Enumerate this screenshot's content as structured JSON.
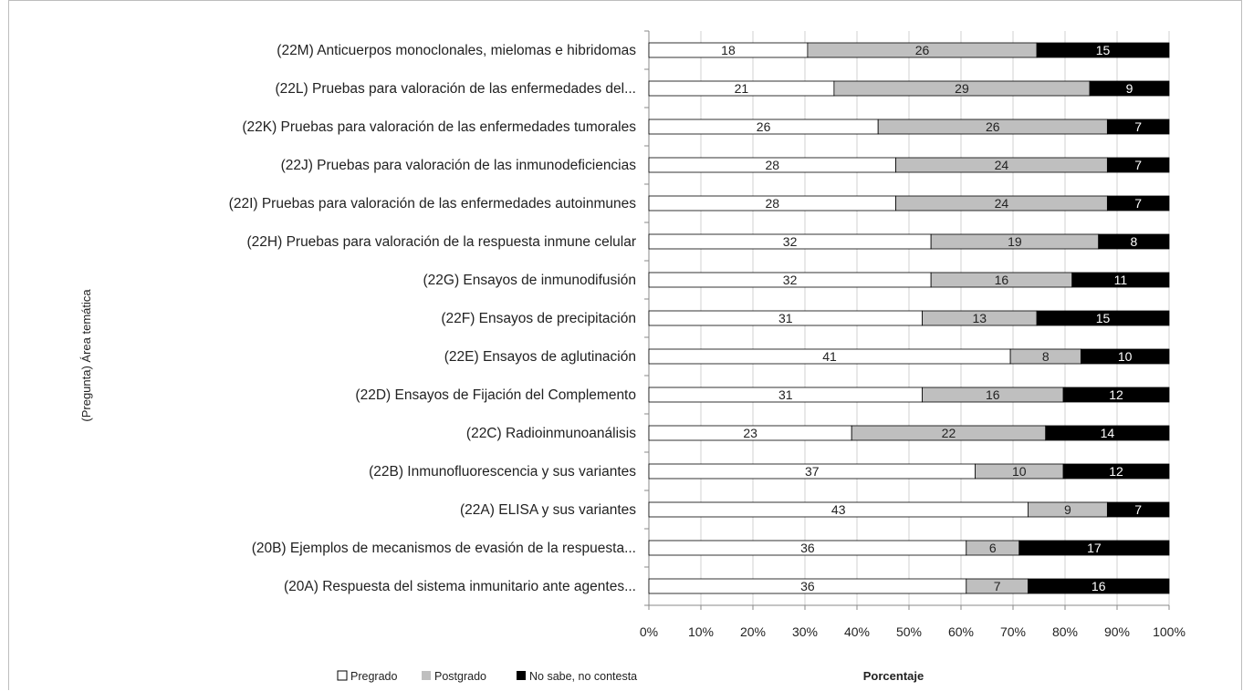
{
  "chart_data": {
    "type": "bar",
    "orientation": "horizontal",
    "stacked": "percent",
    "xlabel": "Porcentaje",
    "ylabel": "(Pregunta) Área temática",
    "xlim": [
      0,
      100
    ],
    "x_ticks": [
      "0%",
      "10%",
      "20%",
      "30%",
      "40%",
      "50%",
      "60%",
      "70%",
      "80%",
      "90%",
      "100%"
    ],
    "grid": "vertical",
    "legend_position": "bottom-left",
    "categories": [
      "(22M) Anticuerpos monoclonales, mielomas e hibridomas",
      "(22L) Pruebas para valoración de las enfermedades del...",
      "(22K) Pruebas para valoración de las enfermedades tumorales",
      "(22J) Pruebas para valoración de las inmunodeficiencias",
      "(22I) Pruebas para valoración de las enfermedades autoinmunes",
      "(22H) Pruebas para valoración de la respuesta inmune celular",
      "(22G) Ensayos de inmunodifusión",
      "(22F) Ensayos de precipitación",
      "(22E) Ensayos de aglutinación",
      "(22D) Ensayos de Fijación del Complemento",
      "(22C) Radioinmunoanálisis",
      "(22B) Inmunofluorescencia y sus variantes",
      "(22A) ELISA y sus variantes",
      "(20B) Ejemplos de mecanismos de evasión de la respuesta...",
      "(20A) Respuesta del sistema inmunitario ante agentes..."
    ],
    "series": [
      {
        "name": "Pregrado",
        "color": "#ffffff",
        "text_color": "#222222",
        "values": [
          18,
          21,
          26,
          28,
          28,
          32,
          32,
          31,
          41,
          31,
          23,
          37,
          43,
          36,
          36
        ]
      },
      {
        "name": "Postgrado",
        "color": "#bfbfbf",
        "text_color": "#222222",
        "values": [
          26,
          29,
          26,
          24,
          24,
          19,
          16,
          13,
          8,
          16,
          22,
          10,
          9,
          6,
          7
        ]
      },
      {
        "name": "No sabe, no contesta",
        "color": "#000000",
        "text_color": "#ffffff",
        "values": [
          15,
          9,
          7,
          7,
          7,
          8,
          11,
          15,
          10,
          12,
          14,
          12,
          7,
          17,
          16
        ]
      }
    ]
  }
}
